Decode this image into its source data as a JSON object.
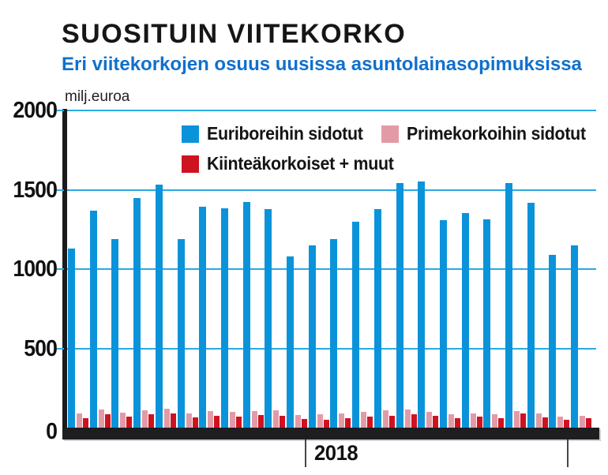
{
  "title": "SUOSITUIN VIITEKORKO",
  "subtitle": "Eri viitekorkojen osuus uusissa asuntolainasopimuksissa",
  "colors": {
    "title": "#161616",
    "subtitle": "#1070cd",
    "gridline": "#2aaae2",
    "axis": "#1b1b1d",
    "euribor_blue": "#0b93da",
    "prime_pink": "#e39aa7",
    "fixed_red": "#cf1220"
  },
  "chart_data": {
    "type": "bar",
    "title": "SUOSITUIN VIITEKORKO",
    "subtitle": "Eri viitekorkojen osuus uusissa asuntolainasopimuksissa",
    "unit_label": "milj.euroa",
    "ylabel": "milj.euroa",
    "xlabel": "",
    "ylim": [
      0,
      2000
    ],
    "yticks": [
      0,
      500,
      1000,
      1500,
      2000
    ],
    "grid": true,
    "legend_position": "top-inside",
    "n_groups": 24,
    "x_ticks": [
      {
        "label": "2018",
        "before_group": 11
      },
      {
        "label": "",
        "before_group": 23
      }
    ],
    "series": [
      {
        "name": "Euriboreihin sidotut",
        "color": "#0b93da",
        "values": [
          1130,
          1370,
          1190,
          1450,
          1530,
          1190,
          1395,
          1385,
          1425,
          1380,
          1080,
          1150,
          1190,
          1300,
          1380,
          1540,
          1550,
          1310,
          1355,
          1315,
          1540,
          1420,
          1090,
          1150
        ]
      },
      {
        "name": "Primekorkoihin sidotut",
        "color": "#e39aa7",
        "values": [
          90,
          115,
          95,
          110,
          120,
          90,
          105,
          100,
          105,
          110,
          80,
          85,
          90,
          100,
          110,
          115,
          100,
          85,
          90,
          85,
          105,
          90,
          70,
          75
        ]
      },
      {
        "name": "Kiinteäkorkoiset + muut",
        "color": "#cf1220",
        "values": [
          60,
          85,
          70,
          85,
          90,
          65,
          75,
          70,
          80,
          75,
          55,
          50,
          60,
          70,
          75,
          85,
          75,
          60,
          70,
          60,
          90,
          65,
          50,
          60
        ]
      }
    ]
  }
}
